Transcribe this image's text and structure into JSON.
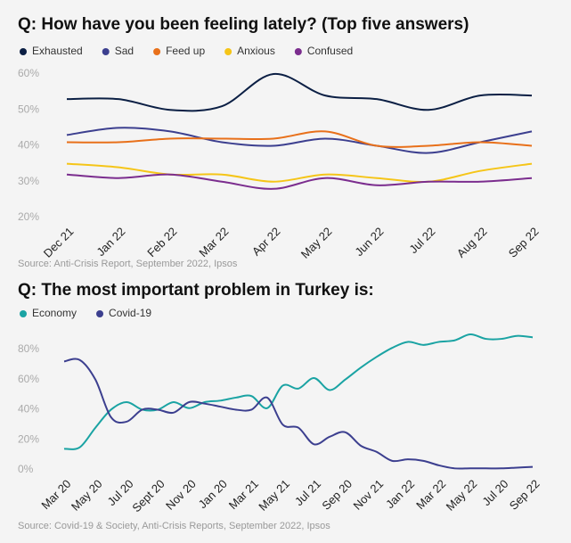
{
  "chart_data": [
    {
      "type": "line",
      "title": "Q: How have you been feeling lately? (Top five answers)",
      "categories": [
        "Dec 21",
        "Jan 22",
        "Feb 22",
        "Mar 22",
        "Apr 22",
        "May 22",
        "Jun 22",
        "Jul 22",
        "Aug 22",
        "Sep 22"
      ],
      "series": [
        {
          "name": "Exhausted",
          "color": "#0b1f44",
          "values": [
            53,
            53,
            50,
            51,
            60,
            54,
            53,
            50,
            54,
            54
          ]
        },
        {
          "name": "Sad",
          "color": "#3c3f8f",
          "values": [
            43,
            45,
            44,
            41,
            40,
            42,
            40,
            38,
            41,
            44
          ]
        },
        {
          "name": "Feed up",
          "color": "#e8701a",
          "values": [
            41,
            41,
            42,
            42,
            42,
            44,
            40,
            40,
            41,
            40
          ]
        },
        {
          "name": "Anxious",
          "color": "#f5c518",
          "values": [
            35,
            34,
            32,
            32,
            30,
            32,
            31,
            30,
            33,
            35
          ]
        },
        {
          "name": "Confused",
          "color": "#7b2d8e",
          "values": [
            32,
            31,
            32,
            30,
            28,
            31,
            29,
            30,
            30,
            31
          ]
        }
      ],
      "ylim": [
        20,
        60
      ],
      "yticks": [
        {
          "value": 20,
          "label": "20%"
        },
        {
          "value": 30,
          "label": "30%"
        },
        {
          "value": 40,
          "label": "40%"
        },
        {
          "value": 50,
          "label": "50%"
        },
        {
          "value": 60,
          "label": "60%"
        }
      ],
      "source": "Source: Anti-Crisis Report, September 2022, Ipsos"
    },
    {
      "type": "line",
      "title": "Q: The most important problem in Turkey is:",
      "categories": [
        "Mar 20",
        null,
        "May 20",
        null,
        "Jul 20",
        null,
        "Sept 20",
        null,
        "Nov 20",
        null,
        "Jan 20",
        null,
        "Mar 21",
        null,
        "May 21",
        null,
        "Jul 21",
        null,
        "Sep 20",
        null,
        "Nov 21",
        null,
        "Jan 22",
        null,
        "Mar 22",
        null,
        "May 22",
        null,
        "Jul 20",
        null,
        "Sep 22"
      ],
      "series": [
        {
          "name": "Economy",
          "color": "#1aa3a3",
          "values": [
            14,
            15,
            28,
            40,
            45,
            40,
            40,
            45,
            41,
            45,
            46,
            48,
            49,
            41,
            56,
            54,
            61,
            53,
            60,
            68,
            75,
            81,
            85,
            83,
            85,
            86,
            90,
            87,
            87,
            89,
            88
          ]
        },
        {
          "name": "Covid-19",
          "color": "#3c3f8f",
          "values": [
            72,
            73,
            60,
            35,
            32,
            40,
            40,
            38,
            45,
            44,
            42,
            40,
            40,
            48,
            30,
            28,
            17,
            22,
            25,
            16,
            12,
            6,
            7,
            6,
            3,
            1,
            1,
            1,
            1,
            1.5,
            2
          ]
        }
      ],
      "ylim": [
        0,
        90
      ],
      "yticks": [
        {
          "value": 0,
          "label": "0%"
        },
        {
          "value": 20,
          "label": "20%"
        },
        {
          "value": 40,
          "label": "40%"
        },
        {
          "value": 60,
          "label": "60%"
        },
        {
          "value": 80,
          "label": "80%"
        }
      ],
      "source": "Source: Covid-19 & Society, Anti-Crisis Reports, September 2022, Ipsos"
    }
  ]
}
